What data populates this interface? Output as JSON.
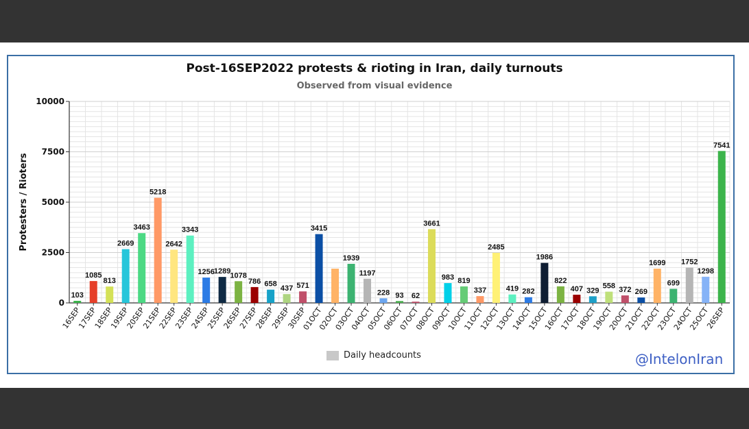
{
  "chart_data": {
    "type": "bar",
    "title": "Post-16SEP2022 protests & rioting in Iran, daily turnouts",
    "subtitle": "Observed from visual evidence",
    "xlabel": "",
    "ylabel": "Protesters / Rioters",
    "ylim": [
      0,
      10000
    ],
    "yticks": [
      "0",
      "2500",
      "5000",
      "7500",
      "10000"
    ],
    "grid": true,
    "legend": {
      "position": "bottom-center",
      "entries": [
        "Daily headcounts"
      ],
      "color": "#c8c8c8"
    },
    "categories": [
      "16SEP",
      "17SEP",
      "18SEP",
      "19SEP",
      "20SEP",
      "21SEP",
      "22SEP",
      "23SEP",
      "24SEP",
      "25SEP",
      "26SEP",
      "27SEP",
      "28SEP",
      "29SEP",
      "30SEP",
      "01OCT",
      "02OCT",
      "03OCT",
      "04OCT",
      "05OCT",
      "06OCT",
      "07OCT",
      "08OCT",
      "09OCT",
      "10OCT",
      "11OCT",
      "12OCT",
      "13OCT",
      "14OCT",
      "15OCT",
      "16OCT",
      "17OCT",
      "18OCT",
      "19OCT",
      "20OCT",
      "21OCT",
      "22OCT",
      "23OCT",
      "24OCT",
      "25OCT",
      "26SEP"
    ],
    "values": [
      103,
      1085,
      813,
      2669,
      3463,
      5218,
      2642,
      3343,
      1256,
      1289,
      1078,
      786,
      658,
      437,
      571,
      3415,
      1699,
      1939,
      1197,
      228,
      93,
      62,
      3661,
      983,
      819,
      337,
      2485,
      419,
      282,
      1986,
      822,
      407,
      329,
      558,
      372,
      269,
      1699,
      699,
      1752,
      1298,
      7541
    ],
    "data_labels": [
      "103",
      "1085",
      "813",
      "2669",
      "3463",
      "5218",
      "2642",
      "3343",
      "1256",
      "1289",
      "1078",
      "786",
      "658",
      "437",
      "571",
      "3415",
      "",
      "1939",
      "1197",
      "228",
      "93",
      "62",
      "3661",
      "983",
      "819",
      "337",
      "2485",
      "419",
      "282",
      "1986",
      "822",
      "407",
      "329",
      "558",
      "372",
      "269",
      "1699",
      "699",
      "1752",
      "1298",
      "7541"
    ],
    "colors": [
      "#3cb44b",
      "#e6402a",
      "#d4e157",
      "#26c6da",
      "#4cd984",
      "#ff9966",
      "#ffe680",
      "#5cf0c0",
      "#2c7be5",
      "#0f2a44",
      "#7cb342",
      "#9b0000",
      "#17a2c8",
      "#aed581",
      "#c0506a",
      "#0b4fa5",
      "#ffb366",
      "#3cb371",
      "#b5b5b5",
      "#6ca6f0",
      "#4caf50",
      "#c0506a",
      "#dcdc5a",
      "#00d0e8",
      "#66cc77",
      "#ff9966",
      "#fff176",
      "#5cf0c0",
      "#2c7be5",
      "#0f1e33",
      "#7cb342",
      "#9b0000",
      "#1ea0c8",
      "#bfe07a",
      "#c0506a",
      "#0b4fa5",
      "#ffb366",
      "#3cb371",
      "#b5b5b5",
      "#86b3f7",
      "#3cb44b"
    ]
  },
  "watermark": "@IntelonIran"
}
